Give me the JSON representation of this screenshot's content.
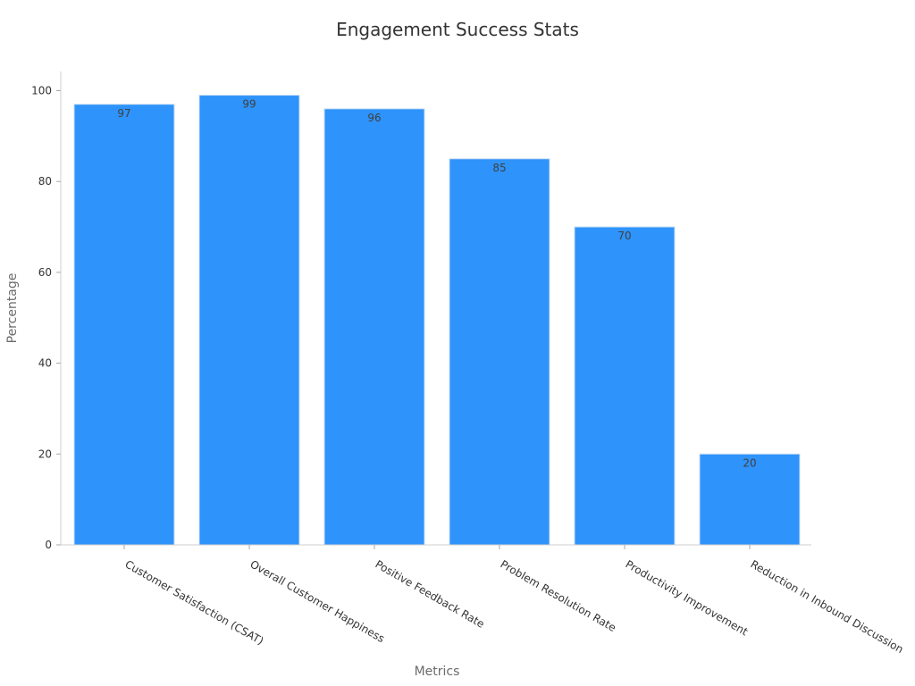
{
  "chart_data": {
    "type": "bar",
    "title": "Engagement Success Stats",
    "xlabel": "Metrics",
    "ylabel": "Percentage",
    "categories": [
      "Customer Satisfaction (CSAT)",
      "Overall Customer Happiness",
      "Positive Feedback Rate",
      "Problem Resolution Rate",
      "Productivity Improvement",
      "Reduction in Inbound Discussion"
    ],
    "values": [
      97,
      99,
      96,
      85,
      70,
      20
    ],
    "ylim": [
      0,
      104
    ],
    "yticks": [
      0,
      20,
      40,
      60,
      80,
      100
    ],
    "grid": false,
    "bar_color": "#2e93fa",
    "bar_edge_color": "#c8ddf5"
  }
}
